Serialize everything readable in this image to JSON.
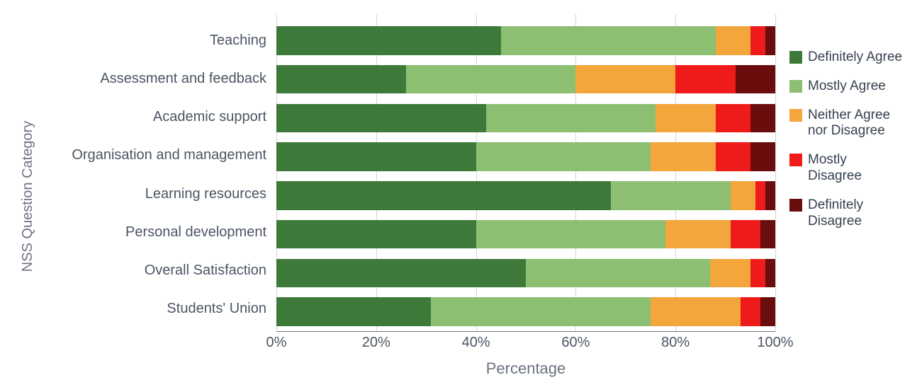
{
  "chart": {
    "type": "stacked-bar-horizontal",
    "y_axis_label": "NSS Question Category",
    "x_axis_label": "Percentage",
    "xlim": [
      0,
      100
    ],
    "x_ticks": [
      0,
      20,
      40,
      60,
      80,
      100
    ],
    "x_tick_labels": [
      "0%",
      "20%",
      "40%",
      "60%",
      "80%",
      "100%"
    ],
    "background_color": "#ffffff",
    "grid_color": "#d1d5db",
    "axis_text_color": "#4b5563",
    "axis_title_color": "#6b7280",
    "label_fontsize": 20,
    "axis_title_fontsize": 22,
    "series": [
      {
        "name": "Definitely Agree",
        "color": "#3d7a3a"
      },
      {
        "name": "Mostly Agree",
        "color": "#8cbf72"
      },
      {
        "name": "Neither Agree nor Disagree",
        "color": "#f2a63c"
      },
      {
        "name": "Mostly Disagree",
        "color": "#ef1a1a"
      },
      {
        "name": "Definitely Disagree",
        "color": "#6a0d0d"
      }
    ],
    "categories": [
      {
        "label": "Teaching",
        "values": [
          45,
          43,
          7,
          3,
          2
        ]
      },
      {
        "label": "Assessment and feedback",
        "values": [
          26,
          34,
          20,
          12,
          8
        ]
      },
      {
        "label": "Academic support",
        "values": [
          42,
          34,
          12,
          7,
          5
        ]
      },
      {
        "label": "Organisation and management",
        "values": [
          40,
          35,
          13,
          7,
          5
        ]
      },
      {
        "label": "Learning resources",
        "values": [
          67,
          24,
          5,
          2,
          2
        ]
      },
      {
        "label": "Personal development",
        "values": [
          40,
          38,
          13,
          6,
          3
        ]
      },
      {
        "label": "Overall Satisfaction",
        "values": [
          50,
          37,
          8,
          3,
          2
        ]
      },
      {
        "label": "Students' Union",
        "values": [
          31,
          44,
          18,
          4,
          3
        ]
      }
    ],
    "bar_height_ratio": 0.74
  }
}
